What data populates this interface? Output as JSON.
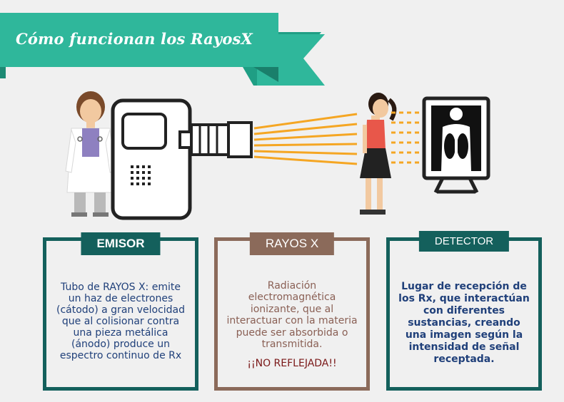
{
  "header": {
    "title": "Cómo funcionan los RayosX"
  },
  "panels": {
    "emisor": {
      "title": "EMISOR",
      "text": "Tubo de RAYOS X: emite un haz de electrones (cátodo) a gran velocidad que al colisionar contra una pieza metálica (ánodo) produce un espectro continuo de Rx"
    },
    "rayos": {
      "title": "RAYOS X",
      "text": "Radiación electromagnética ionizante, que al interactuar con la materia puede ser absorbida o transmitida.",
      "alert": "¡¡NO REFLEJADA!!"
    },
    "detector": {
      "title": "DETECTOR",
      "text": "Lugar de recepción de los Rx, que interactúan con diferentes sustancias, creando una imagen según la intensidad de señal receptada."
    }
  },
  "colors": {
    "banner": "#2fb79b",
    "panel_dark": "#14605c",
    "panel_brown": "#8b6a5a",
    "beam": "#f5a623"
  }
}
